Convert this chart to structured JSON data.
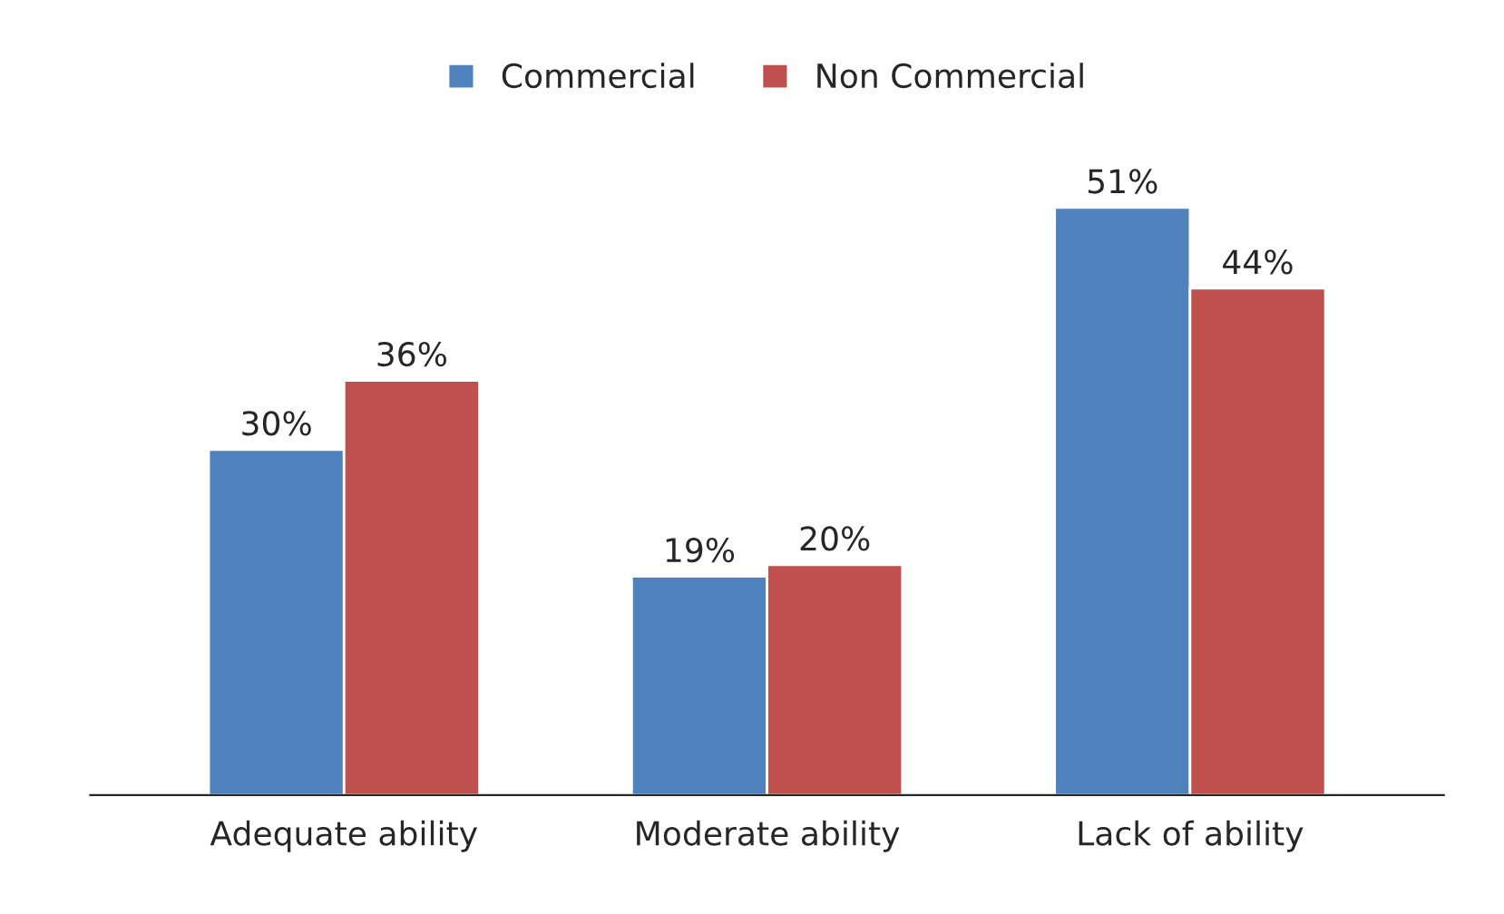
{
  "chart_data": {
    "type": "bar",
    "categories": [
      "Adequate ability",
      "Moderate ability",
      "Lack of ability"
    ],
    "series": [
      {
        "name": "Commercial",
        "color": "#4f81bd",
        "values": [
          30,
          19,
          51
        ],
        "value_labels": [
          "30%",
          "19%",
          "51%"
        ]
      },
      {
        "name": "Non Commercial",
        "color": "#c0504d",
        "values": [
          36,
          20,
          44
        ],
        "value_labels": [
          "36%",
          "20%",
          "44%"
        ]
      }
    ],
    "legend": "top",
    "grid": false
  }
}
